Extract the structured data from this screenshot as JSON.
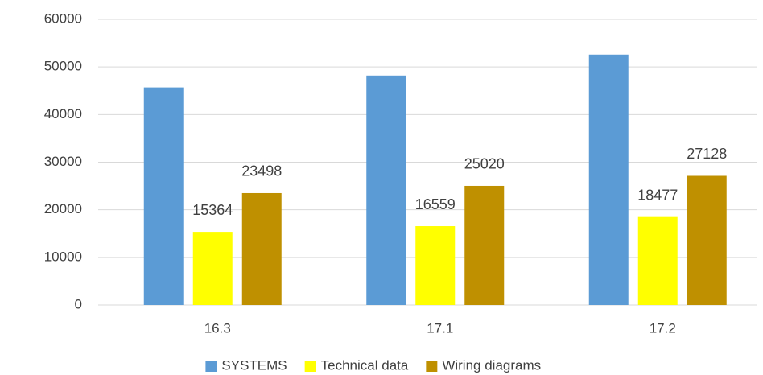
{
  "chart_data": {
    "type": "bar",
    "categories": [
      "16.3",
      "17.1",
      "17.2"
    ],
    "series": [
      {
        "name": "SYSTEMS",
        "color": "#5b9bd5",
        "values": [
          45700,
          48200,
          52600
        ],
        "show_labels": false
      },
      {
        "name": "Technical data",
        "color": "#ffff00",
        "values": [
          15364,
          16559,
          18477
        ],
        "show_labels": true
      },
      {
        "name": "Wiring diagrams",
        "color": "#bf9000",
        "values": [
          23498,
          25020,
          27128
        ],
        "show_labels": true
      }
    ],
    "ylim": [
      0,
      60000
    ],
    "yticks": [
      0,
      10000,
      20000,
      30000,
      40000,
      50000,
      60000
    ],
    "grid": true,
    "legend": "bottom"
  }
}
